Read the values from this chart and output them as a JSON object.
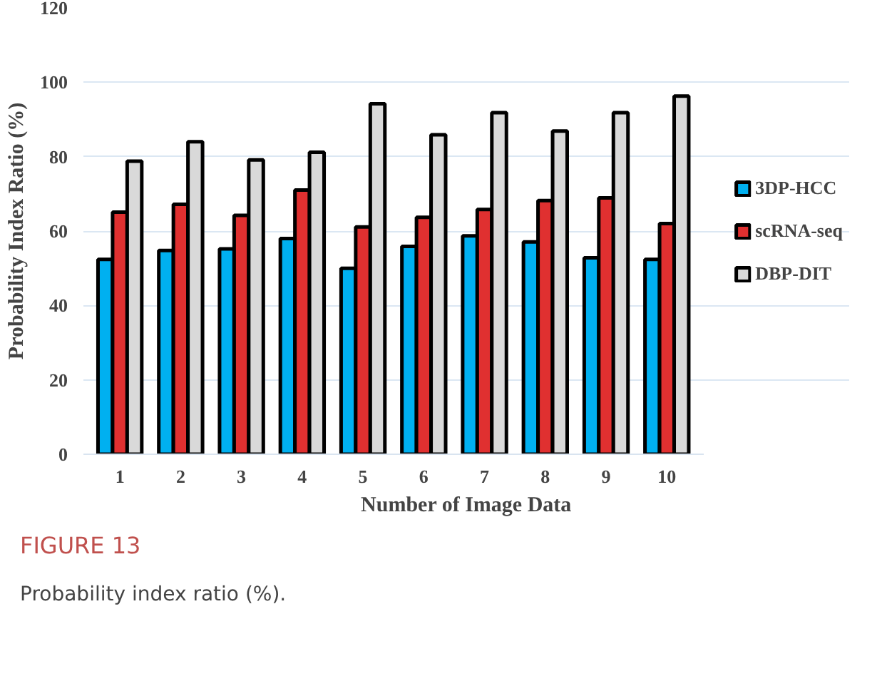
{
  "chart_data": {
    "type": "bar",
    "xlabel": "Number of Image Data",
    "ylabel": "Probability Index Ratio (%)",
    "categories": [
      "1",
      "2",
      "3",
      "4",
      "5",
      "6",
      "7",
      "8",
      "9",
      "10"
    ],
    "series": [
      {
        "name": "3DP-HCC",
        "color": "#00b0f0",
        "values": [
          52.4,
          54.8,
          55.2,
          58.0,
          50.0,
          55.9,
          58.7,
          57.1,
          52.8,
          52.4
        ]
      },
      {
        "name": "scRNA-seq",
        "color": "#e03030",
        "values": [
          65.1,
          67.2,
          64.2,
          71.0,
          61.1,
          63.7,
          65.8,
          68.2,
          68.9,
          62.0
        ]
      },
      {
        "name": "DBP-DIT",
        "color": "#d9d9d9",
        "values": [
          78.8,
          84.0,
          79.1,
          81.2,
          94.2,
          85.9,
          91.8,
          86.9,
          91.8,
          96.3
        ]
      }
    ],
    "ylim": [
      0,
      120
    ],
    "yticks": [
      0,
      20,
      40,
      60,
      80,
      100,
      120
    ],
    "grid": "y",
    "legend": "right",
    "annotations": [
      "FIGURE 13",
      "Probability index ratio (%)."
    ]
  }
}
